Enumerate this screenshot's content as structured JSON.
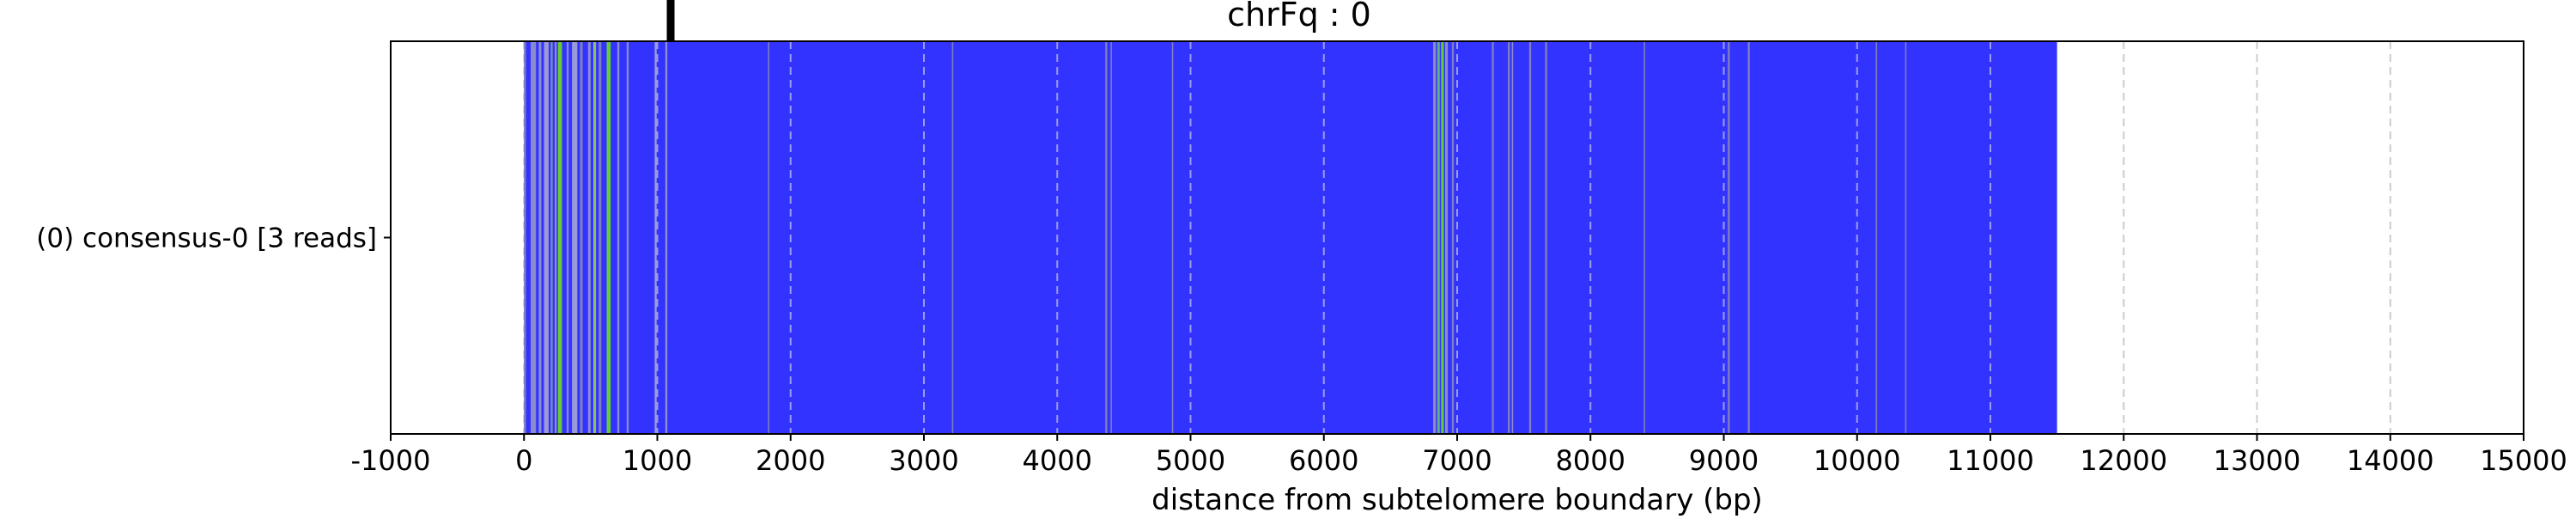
{
  "chart_data": {
    "type": "bar",
    "title": "chrFq : 0",
    "xlabel": "distance from subtelomere boundary (bp)",
    "ylabel": "",
    "xlim": [
      -1000,
      15000
    ],
    "x_ticks": [
      -1000,
      0,
      1000,
      2000,
      3000,
      4000,
      5000,
      6000,
      7000,
      8000,
      9000,
      10000,
      11000,
      12000,
      13000,
      14000,
      15000
    ],
    "tick_labels": [
      "-1000",
      "0",
      "1000",
      "2000",
      "3000",
      "4000",
      "5000",
      "6000",
      "7000",
      "8000",
      "9000",
      "10000",
      "11000",
      "12000",
      "13000",
      "14000",
      "15000"
    ],
    "grid": "vertical dashed",
    "categories": [
      "(0) consensus-0 [3 reads]"
    ],
    "main_bar": {
      "start": 0,
      "end": 11500,
      "color": "#3333ff"
    },
    "marker": {
      "position": 1100,
      "color": "#000000"
    },
    "segments": [
      {
        "start": 0,
        "end": 15,
        "color": "#7f7fbf"
      },
      {
        "start": 50,
        "end": 90,
        "color": "#8a8acf"
      },
      {
        "start": 110,
        "end": 130,
        "color": "#8c8ccf"
      },
      {
        "start": 150,
        "end": 185,
        "color": "#9a9ad8"
      },
      {
        "start": 200,
        "end": 215,
        "color": "#7a8fb0"
      },
      {
        "start": 230,
        "end": 245,
        "color": "#8c8ccf"
      },
      {
        "start": 255,
        "end": 285,
        "color": "#66cc33"
      },
      {
        "start": 320,
        "end": 335,
        "color": "#8c8ccf"
      },
      {
        "start": 360,
        "end": 400,
        "color": "#9a9ad8"
      },
      {
        "start": 420,
        "end": 440,
        "color": "#7f7fbf"
      },
      {
        "start": 480,
        "end": 500,
        "color": "#8c8ccf"
      },
      {
        "start": 520,
        "end": 540,
        "color": "#8ec06a"
      },
      {
        "start": 560,
        "end": 580,
        "color": "#7f7fbf"
      },
      {
        "start": 620,
        "end": 650,
        "color": "#66cc33"
      },
      {
        "start": 700,
        "end": 715,
        "color": "#8c8ccf"
      },
      {
        "start": 770,
        "end": 785,
        "color": "#8c8ccf"
      },
      {
        "start": 980,
        "end": 995,
        "color": "#9a9ad8"
      },
      {
        "start": 1060,
        "end": 1075,
        "color": "#8c8ccf"
      },
      {
        "start": 1830,
        "end": 1840,
        "color": "#7f7fbf"
      },
      {
        "start": 3210,
        "end": 3220,
        "color": "#7f7fbf"
      },
      {
        "start": 4360,
        "end": 4375,
        "color": "#7f7fbf"
      },
      {
        "start": 4400,
        "end": 4410,
        "color": "#7f7fbf"
      },
      {
        "start": 4860,
        "end": 4870,
        "color": "#7f7fbf"
      },
      {
        "start": 6820,
        "end": 6840,
        "color": "#8c8ccf"
      },
      {
        "start": 6850,
        "end": 6870,
        "color": "#5ab080"
      },
      {
        "start": 6880,
        "end": 6900,
        "color": "#66cc33"
      },
      {
        "start": 6910,
        "end": 6930,
        "color": "#8c8ccf"
      },
      {
        "start": 6960,
        "end": 6975,
        "color": "#7f7fbf"
      },
      {
        "start": 7260,
        "end": 7275,
        "color": "#7f7fbf"
      },
      {
        "start": 7380,
        "end": 7395,
        "color": "#7f7fbf"
      },
      {
        "start": 7410,
        "end": 7420,
        "color": "#8c8ccf"
      },
      {
        "start": 7540,
        "end": 7555,
        "color": "#7f7fbf"
      },
      {
        "start": 7660,
        "end": 7675,
        "color": "#7f7fbf"
      },
      {
        "start": 8400,
        "end": 8410,
        "color": "#7f7fbf"
      },
      {
        "start": 9030,
        "end": 9045,
        "color": "#7f7fbf"
      },
      {
        "start": 9180,
        "end": 9195,
        "color": "#7f7fbf"
      },
      {
        "start": 10140,
        "end": 10150,
        "color": "#7f7fbf"
      },
      {
        "start": 10360,
        "end": 10370,
        "color": "#7f7fbf"
      }
    ]
  }
}
